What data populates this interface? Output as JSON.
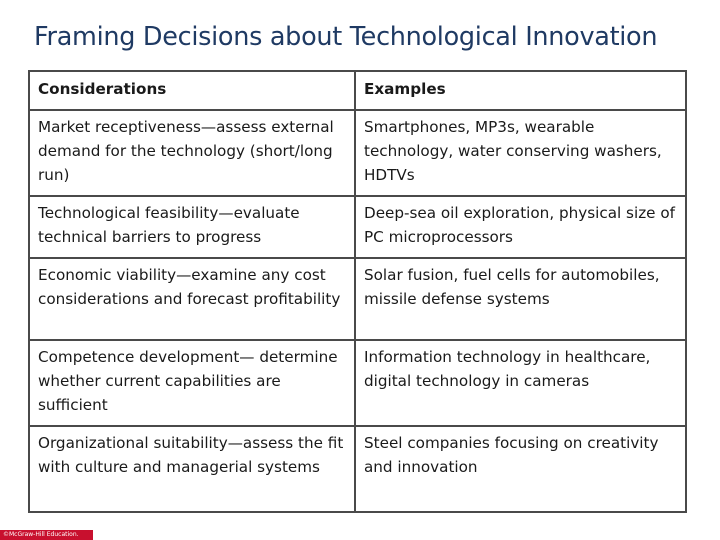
{
  "slide": {
    "title": "Framing Decisions about Technological Innovation"
  },
  "table": {
    "headers": [
      "Considerations",
      "Examples"
    ],
    "rows": [
      [
        "Market receptiveness—assess external demand for the technology (short/long run)",
        "Smartphones, MP3s, wearable technology, water conserving washers, HDTVs"
      ],
      [
        "Technological feasibility—evaluate technical barriers to progress",
        "Deep-sea oil exploration, physical size of PC microprocessors"
      ],
      [
        "Economic viability—examine any cost considerations and forecast profitability",
        "Solar fusion, fuel cells for automobiles, missile defense systems"
      ],
      [
        "Competence development— determine whether current capabilities are sufficient",
        "Information technology in healthcare, digital technology in cameras"
      ],
      [
        "Organizational suitability—assess the fit with culture and managerial systems",
        "Steel companies focusing on creativity and innovation"
      ]
    ]
  },
  "footer": {
    "copyright": "©McGraw-Hill Education."
  },
  "colors": {
    "title": "#1f3a63",
    "border": "#4a4a4a",
    "footer_bar": "#c8102e"
  }
}
